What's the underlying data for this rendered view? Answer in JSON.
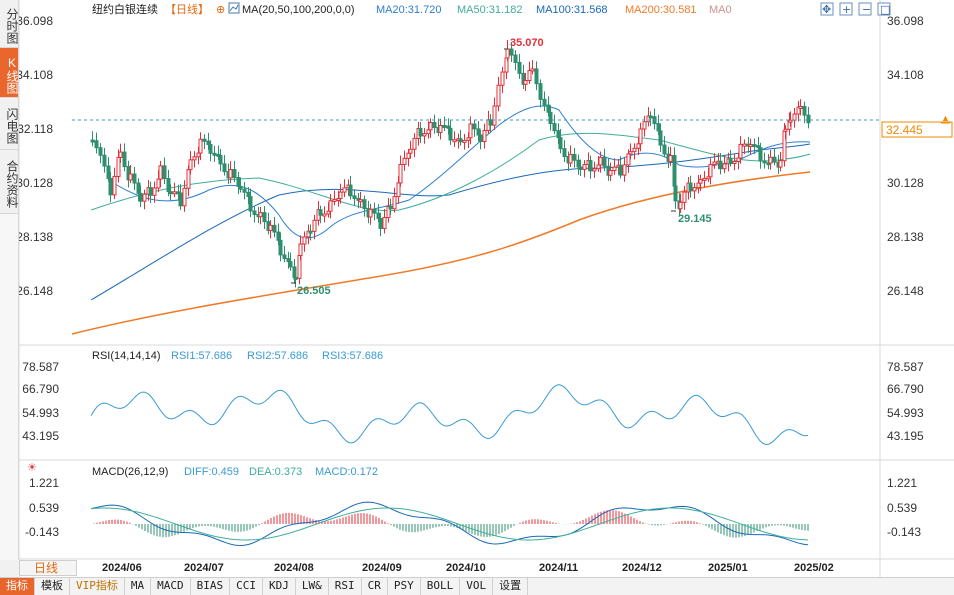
{
  "sidebar": {
    "tabs": [
      {
        "label": "分时图",
        "active": false
      },
      {
        "label": "K线图",
        "active": true
      },
      {
        "label": "闪电图",
        "active": false
      },
      {
        "label": "合约资料",
        "active": false
      }
    ]
  },
  "header": {
    "title": "纽约白银连续",
    "period_tag": "【日线】",
    "ma_config": "MA(20,50,100,200,0,0)",
    "ma20": "MA20:31.720",
    "ma50": "MA50:31.182",
    "ma100": "MA100:31.568",
    "ma200": "MA200:30.581",
    "ma0": "MA0"
  },
  "controls": [
    "move",
    "zoom-in",
    "zoom-out",
    "fullscreen",
    "close"
  ],
  "price_axis": {
    "labels": [
      "36.098",
      "34.108",
      "32.118",
      "30.128",
      "28.138",
      "26.148"
    ],
    "current_price": "32.445",
    "high_marker": "35.070",
    "low_marker": "26.505",
    "mid_low_marker": "29.145"
  },
  "rsi": {
    "title": "RSI(14,14,14)",
    "rsi1": "RSI1:57.686",
    "rsi2": "RSI2:57.686",
    "rsi3": "RSI3:57.686",
    "labels": [
      "78.587",
      "66.790",
      "54.993",
      "43.195"
    ]
  },
  "macd": {
    "title": "MACD(26,12,9)",
    "diff": "DIFF:0.459",
    "dea": "DEA:0.373",
    "macd": "MACD:0.172",
    "labels": [
      "1.221",
      "0.539",
      "-0.143"
    ]
  },
  "time_axis": [
    "2024/06",
    "2024/07",
    "2024/08",
    "2024/09",
    "2024/10",
    "2024/11",
    "2024/12",
    "2025/01",
    "2025/02"
  ],
  "period_button": "日线",
  "indicator_bar": [
    "指标",
    "模板",
    "VIP指标",
    "MA",
    "MACD",
    "BIAS",
    "CCI",
    "KDJ",
    "LW&",
    "RSI",
    "CR",
    "PSY",
    "BOLL",
    "VOL",
    "设置"
  ],
  "colors": {
    "up": "#e0303a",
    "down": "#2f8f6c",
    "ma20": "#2f7fd0",
    "ma50": "#3eae9a",
    "ma100": "#1a68b8",
    "ma200": "#f07a28",
    "rsi": "#3a9bd5",
    "price_tag": "#f08a00"
  }
}
